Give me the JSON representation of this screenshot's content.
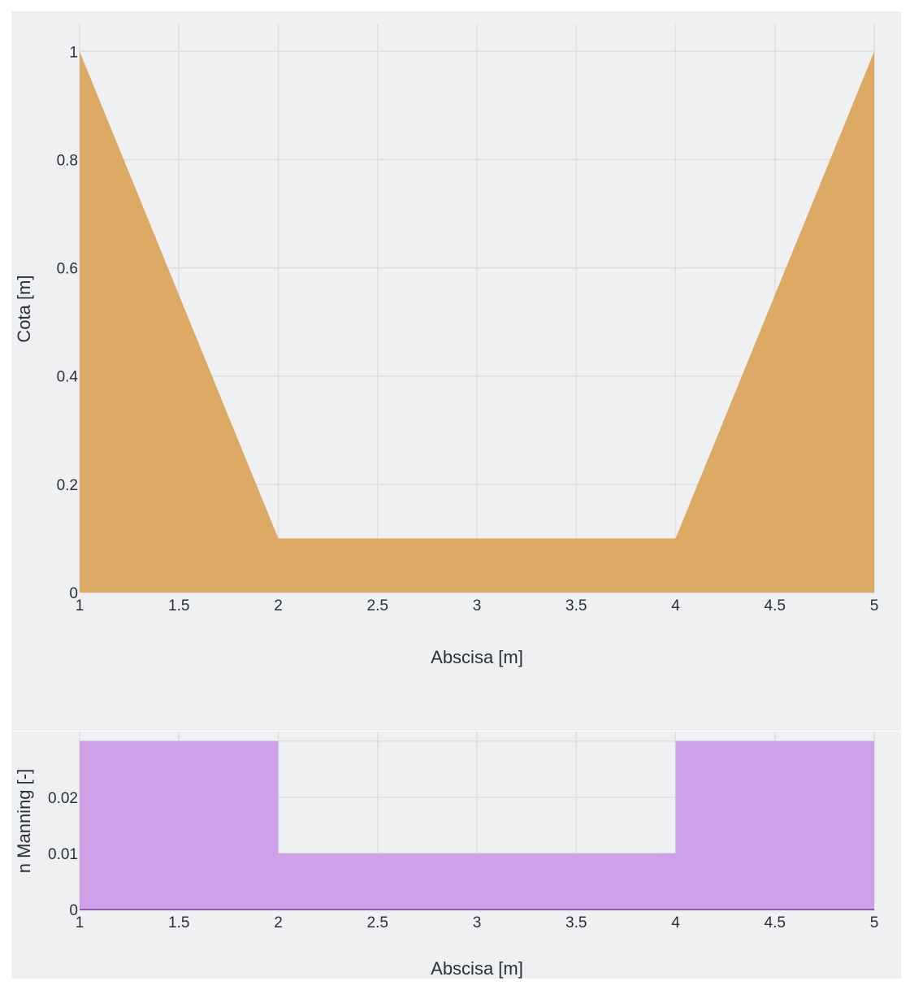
{
  "colors": {
    "background": "#eff0f2",
    "grid": "#dcdee2",
    "elevation_fill": "#ddaa66",
    "manning_fill": "#cea0e8",
    "manning_line": "#8e5ab0",
    "text": "#2a2f3a"
  },
  "chart_data": [
    {
      "type": "area",
      "title": "",
      "xlabel": "Abscisa [m]",
      "ylabel": "Cota [m]",
      "x": [
        1,
        2,
        4,
        5
      ],
      "series": [
        {
          "name": "Cota",
          "values": [
            1,
            0.1,
            0.1,
            1
          ]
        }
      ],
      "xlim": [
        1,
        5
      ],
      "ylim": [
        0,
        1.05
      ],
      "xticks": [
        "1",
        "1.5",
        "2",
        "2.5",
        "3",
        "3.5",
        "4",
        "4.5",
        "5"
      ],
      "yticks": [
        "0",
        "0.2",
        "0.4",
        "0.6",
        "0.8",
        "1"
      ],
      "grid": true,
      "legend": "none"
    },
    {
      "type": "area",
      "title": "",
      "xlabel": "Abscisa [m]",
      "ylabel": "n Manning [-]",
      "x": [
        1,
        2,
        2,
        4,
        4,
        5
      ],
      "series": [
        {
          "name": "n Manning",
          "values": [
            0.03,
            0.03,
            0.01,
            0.01,
            0.03,
            0.03
          ]
        }
      ],
      "xlim": [
        1,
        5
      ],
      "ylim": [
        0,
        0.0317
      ],
      "xticks": [
        "1",
        "1.5",
        "2",
        "2.5",
        "3",
        "3.5",
        "4",
        "4.5",
        "5"
      ],
      "yticks": [
        "0",
        "0.01",
        "0.02"
      ],
      "grid": true,
      "legend": "none"
    }
  ]
}
